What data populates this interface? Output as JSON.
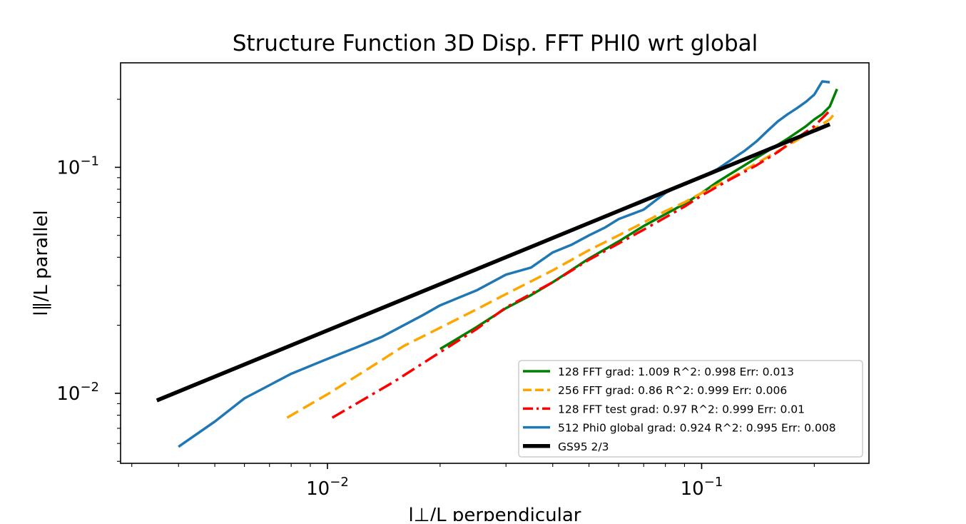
{
  "chart_data": {
    "type": "line",
    "title": "Structure Function 3D Disp. FFT PHI0 wrt global",
    "xlabel": "l⊥/L perpendicular",
    "ylabel": "l∥/L parallel",
    "xscale": "log",
    "yscale": "log",
    "xlim": [
      0.0028,
      0.28
    ],
    "ylim": [
      0.0049,
      0.29
    ],
    "xticks": [
      {
        "value": 0.01,
        "base": "10",
        "exp": "−2"
      },
      {
        "value": 0.1,
        "base": "10",
        "exp": "−1"
      }
    ],
    "yticks": [
      {
        "value": 0.01,
        "base": "10",
        "exp": "−2"
      },
      {
        "value": 0.1,
        "base": "10",
        "exp": "−1"
      }
    ],
    "grid": false,
    "legend_position": "lower-right",
    "series": [
      {
        "name": "128 FFT grad: 1.009 R^2: 0.998  Err: 0.013",
        "color": "#008000",
        "style": "solid",
        "x": [
          0.02,
          0.025,
          0.03,
          0.035,
          0.04,
          0.05,
          0.06,
          0.07,
          0.08,
          0.09,
          0.1,
          0.11,
          0.12,
          0.13,
          0.14,
          0.15,
          0.16,
          0.17,
          0.18,
          0.19,
          0.2,
          0.21,
          0.22,
          0.23
        ],
        "y": [
          0.0157,
          0.0196,
          0.0238,
          0.0272,
          0.031,
          0.0395,
          0.047,
          0.055,
          0.062,
          0.069,
          0.077,
          0.086,
          0.094,
          0.102,
          0.11,
          0.118,
          0.126,
          0.134,
          0.143,
          0.152,
          0.163,
          0.172,
          0.186,
          0.222
        ]
      },
      {
        "name": "256 FFT grad: 0.86 R^2: 0.999  Err: 0.006",
        "color": "#ffa500",
        "style": "dashed",
        "x": [
          0.0078,
          0.01,
          0.013,
          0.016,
          0.02,
          0.025,
          0.03,
          0.04,
          0.05,
          0.06,
          0.07,
          0.08,
          0.09,
          0.1,
          0.12,
          0.14,
          0.16,
          0.18,
          0.2,
          0.22,
          0.23
        ],
        "y": [
          0.0078,
          0.0099,
          0.013,
          0.0162,
          0.0195,
          0.0235,
          0.0275,
          0.035,
          0.043,
          0.05,
          0.057,
          0.064,
          0.07,
          0.077,
          0.09,
          0.104,
          0.118,
          0.132,
          0.148,
          0.163,
          0.178
        ]
      },
      {
        "name": "128 FFT test grad: 0.97 R^2: 0.999  Err: 0.01",
        "color": "#ff0000",
        "style": "dashdot",
        "x": [
          0.0103,
          0.015,
          0.02,
          0.025,
          0.03,
          0.04,
          0.05,
          0.06,
          0.07,
          0.08,
          0.09,
          0.1,
          0.12,
          0.14,
          0.16,
          0.18,
          0.2,
          0.22
        ],
        "y": [
          0.0078,
          0.0112,
          0.0152,
          0.0192,
          0.024,
          0.031,
          0.039,
          0.046,
          0.053,
          0.06,
          0.067,
          0.075,
          0.089,
          0.102,
          0.117,
          0.135,
          0.152,
          0.178
        ]
      },
      {
        "name": "512 Phi0 global grad: 0.924 R^2: 0.995  Err: 0.008",
        "color": "#1f77b4",
        "style": "solid",
        "x": [
          0.004,
          0.005,
          0.006,
          0.008,
          0.01,
          0.012,
          0.014,
          0.016,
          0.018,
          0.02,
          0.025,
          0.03,
          0.035,
          0.04,
          0.045,
          0.05,
          0.055,
          0.06,
          0.07,
          0.08,
          0.09,
          0.1,
          0.11,
          0.12,
          0.13,
          0.14,
          0.15,
          0.16,
          0.17,
          0.18,
          0.19,
          0.2,
          0.21,
          0.22
        ],
        "y": [
          0.0058,
          0.0075,
          0.0095,
          0.0122,
          0.0142,
          0.016,
          0.0178,
          0.02,
          0.0222,
          0.0245,
          0.0285,
          0.0335,
          0.036,
          0.042,
          0.0455,
          0.05,
          0.054,
          0.059,
          0.065,
          0.077,
          0.085,
          0.091,
          0.098,
          0.108,
          0.118,
          0.13,
          0.145,
          0.16,
          0.172,
          0.183,
          0.195,
          0.21,
          0.24,
          0.238
        ]
      },
      {
        "name": "GS95 2/3",
        "color": "#000000",
        "style": "solid",
        "x": [
          0.0035,
          0.22
        ],
        "y": [
          0.0093,
          0.155
        ]
      }
    ]
  }
}
